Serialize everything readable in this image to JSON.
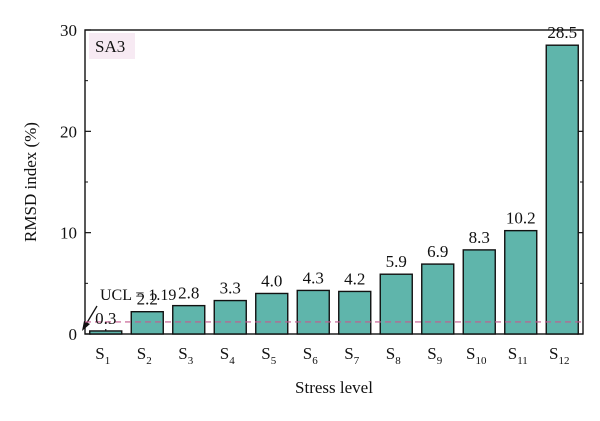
{
  "chart_data": {
    "type": "bar",
    "panel_label": "SA3",
    "categories": [
      {
        "base": "S",
        "sub": "1"
      },
      {
        "base": "S",
        "sub": "2"
      },
      {
        "base": "S",
        "sub": "3"
      },
      {
        "base": "S",
        "sub": "4"
      },
      {
        "base": "S",
        "sub": "5"
      },
      {
        "base": "S",
        "sub": "6"
      },
      {
        "base": "S",
        "sub": "7"
      },
      {
        "base": "S",
        "sub": "8"
      },
      {
        "base": "S",
        "sub": "9"
      },
      {
        "base": "S",
        "sub": "10"
      },
      {
        "base": "S",
        "sub": "11"
      },
      {
        "base": "S",
        "sub": "12"
      }
    ],
    "values": [
      0.3,
      2.2,
      2.8,
      3.3,
      4.0,
      4.3,
      4.2,
      5.9,
      6.9,
      8.3,
      10.2,
      28.5
    ],
    "value_labels": [
      "0.3",
      "2.2",
      "2.8",
      "3.3",
      "4.0",
      "4.3",
      "4.2",
      "5.9",
      "6.9",
      "8.3",
      "10.2",
      "28.5"
    ],
    "xlabel": "Stress level",
    "ylabel": "RMSD index (%)",
    "ylim": [
      0,
      30
    ],
    "yticks": [
      0,
      10,
      20,
      30
    ],
    "ytick_labels": [
      "0",
      "10",
      "20",
      "30"
    ],
    "threshold": {
      "label": "UCL = 1.19",
      "value": 1.19,
      "color": "#c45a8e",
      "style": "dashed"
    },
    "colors": {
      "bar_fill": "#5fb5ab",
      "bar_stroke": "#111111",
      "panel_label_bg": "#f7eaf3"
    },
    "grid": false,
    "legend": "none"
  }
}
